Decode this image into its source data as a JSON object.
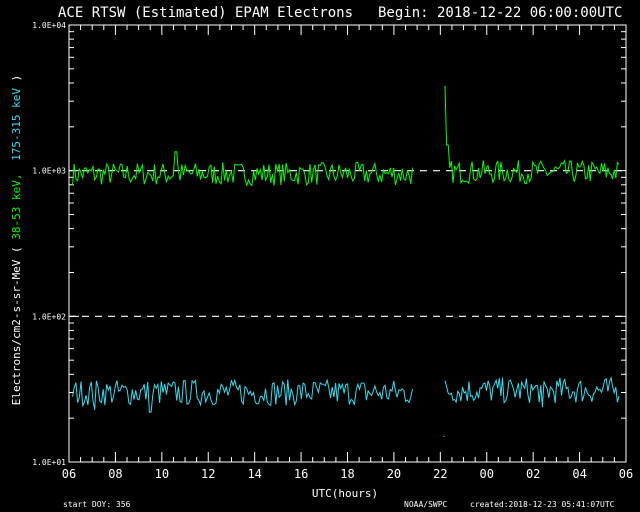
{
  "chart_data": {
    "type": "line",
    "title": "ACE RTSW (Estimated) EPAM Electrons",
    "begin_label": "Begin: 2018-12-22 06:00:00UTC",
    "xlabel": "UTC(hours)",
    "ylabel_prefix": "Electrons/cm2-s-sr-MeV  ( ",
    "ylabel_green": "38-53 keV,",
    "ylabel_cyan": "175-315 keV",
    "ylabel_suffix": " )",
    "y_scale": "log",
    "ylim": [
      10,
      10000
    ],
    "y_ticks": [
      {
        "value": 10,
        "label": "1.0E+01"
      },
      {
        "value": 100,
        "label": "1.0E+02"
      },
      {
        "value": 1000,
        "label": "1.0E+03"
      },
      {
        "value": 10000,
        "label": "1.0E+04"
      }
    ],
    "reference_lines": [
      100,
      1000
    ],
    "xlim": [
      0,
      24
    ],
    "x_ticks": [
      {
        "value": 0,
        "label": "06"
      },
      {
        "value": 2,
        "label": "08"
      },
      {
        "value": 4,
        "label": "10"
      },
      {
        "value": 6,
        "label": "12"
      },
      {
        "value": 8,
        "label": "14"
      },
      {
        "value": 10,
        "label": "16"
      },
      {
        "value": 12,
        "label": "18"
      },
      {
        "value": 14,
        "label": "20"
      },
      {
        "value": 16,
        "label": "22"
      },
      {
        "value": 18,
        "label": "00"
      },
      {
        "value": 20,
        "label": "02"
      },
      {
        "value": 22,
        "label": "04"
      },
      {
        "value": 24,
        "label": "06"
      }
    ],
    "series": [
      {
        "name": "38-53 keV",
        "color": "#00ff00",
        "segments": [
          {
            "x_start": 0.15,
            "x_end": 14.8,
            "points": 200,
            "base": 950,
            "spread": 0.08
          },
          {
            "x_start": 16.2,
            "x_end": 23.7,
            "points": 110,
            "base": 980,
            "spread": 0.08
          }
        ],
        "spikes": [
          {
            "x": 4.6,
            "y": 1350
          },
          {
            "x": 16.2,
            "y": 3800
          },
          {
            "x": 16.3,
            "y": 1500
          }
        ]
      },
      {
        "name": "175-315 keV",
        "color": "#33ddee",
        "segments": [
          {
            "x_start": 0.15,
            "x_end": 14.8,
            "points": 200,
            "base": 30,
            "spread": 0.09
          },
          {
            "x_start": 16.2,
            "x_end": 23.7,
            "points": 110,
            "base": 31,
            "spread": 0.09
          }
        ],
        "spikes": [
          {
            "x": 1.1,
            "y": 23
          },
          {
            "x": 3.5,
            "y": 22
          },
          {
            "x": 16.15,
            "y": 15
          },
          {
            "x": 20.4,
            "y": 24
          }
        ]
      }
    ]
  },
  "footer": {
    "start_doy": "start DOY:  356",
    "source": "NOAA/SWPC",
    "created": "created:2018-12-23 05:41:07UTC"
  },
  "colors": {
    "background": "#000000",
    "axes": "#ffffff",
    "green": "#00ff00",
    "cyan": "#33ddee"
  }
}
